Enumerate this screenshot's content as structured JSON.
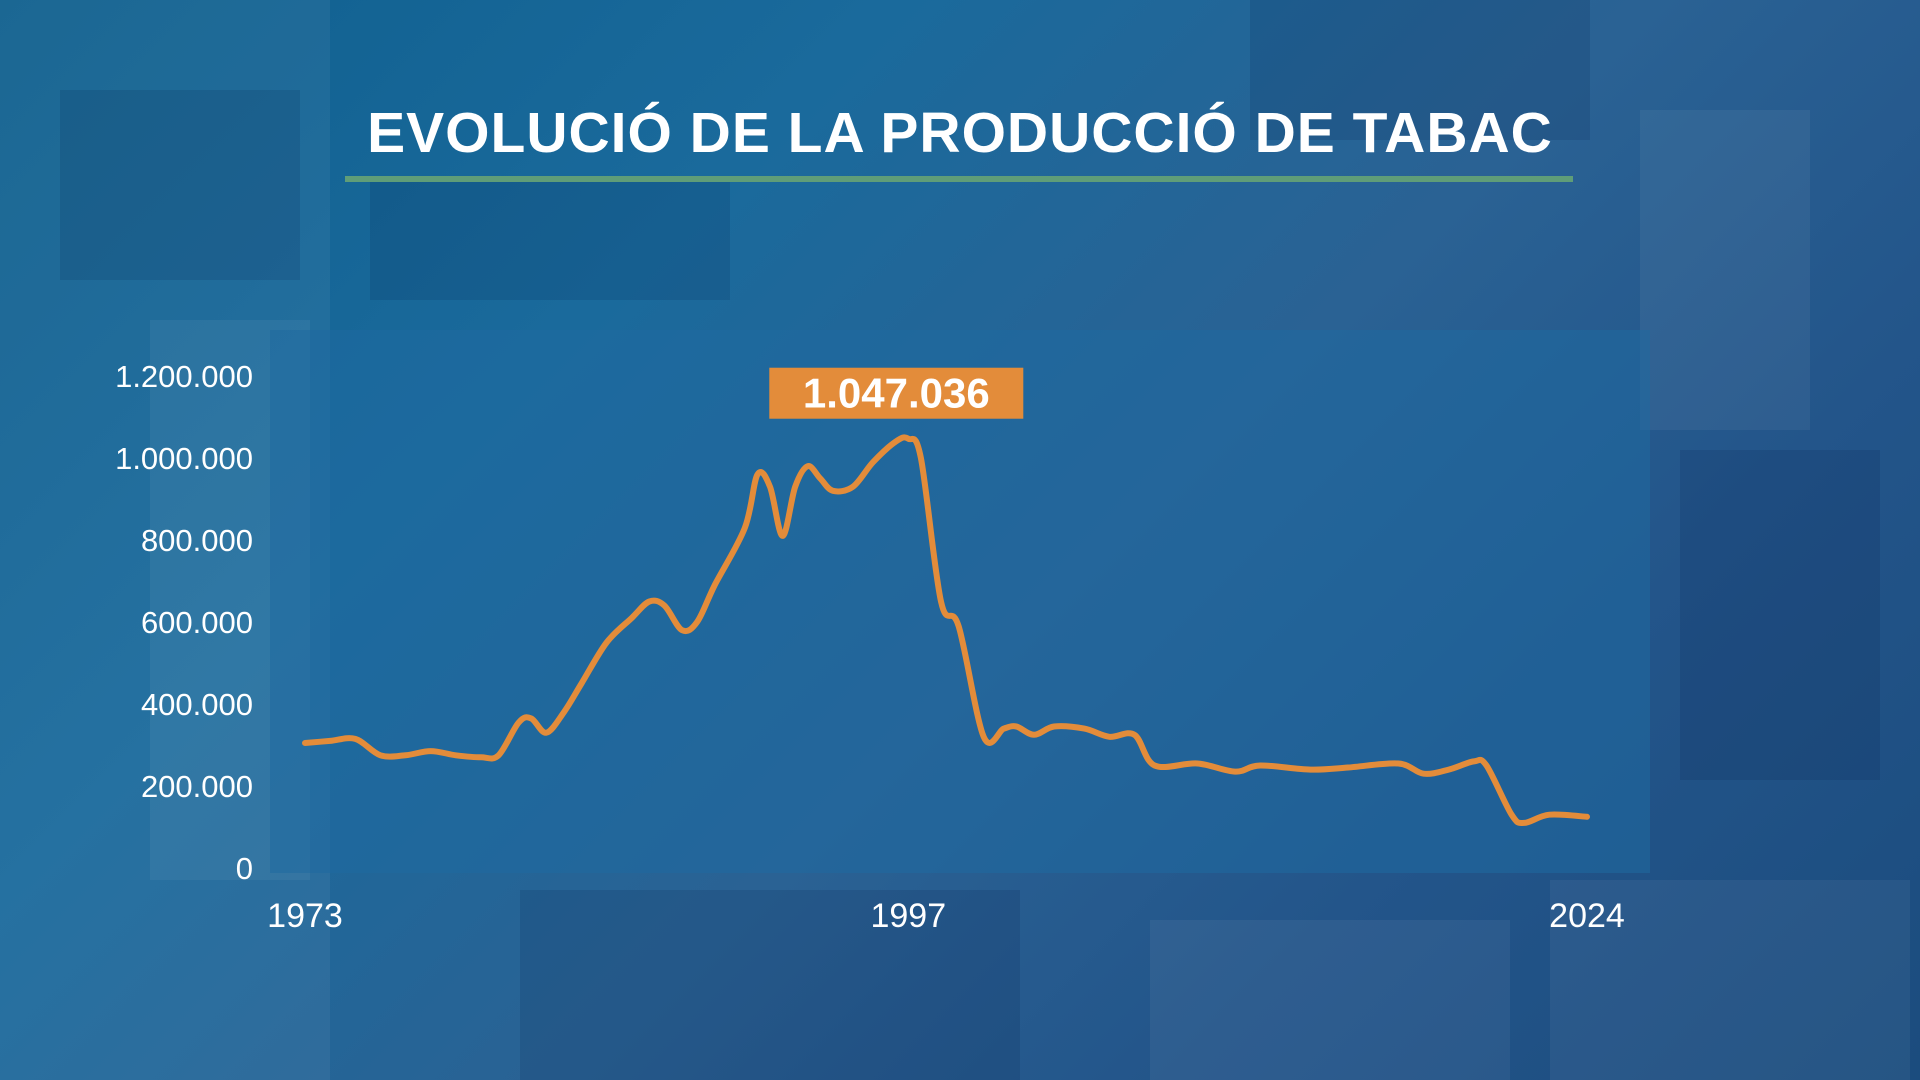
{
  "title": "EVOLUCIÓ DE LA PRODUCCIÓ DE TABAC",
  "colors": {
    "line": "#e38c3a",
    "label_bg": "#e38c3a",
    "title_rule": "#5f9d78",
    "text": "#ffffff",
    "plot_bg": "#1f6aa0"
  },
  "chart_data": {
    "type": "line",
    "title": "EVOLUCIÓ DE LA PRODUCCIÓ DE TABAC",
    "xlabel": "",
    "ylabel": "",
    "ylim": [
      0,
      1200000
    ],
    "xlim": [
      1973,
      2024
    ],
    "grid": false,
    "y_ticks": [
      "0",
      "200.000",
      "400.000",
      "600.000",
      "800.000",
      "1.000.000",
      "1.200.000"
    ],
    "y_tick_values": [
      0,
      200000,
      400000,
      600000,
      800000,
      1000000,
      1200000
    ],
    "x_ticks": [
      "1973",
      "1997",
      "2024"
    ],
    "x_tick_values": [
      1973,
      1997,
      2024
    ],
    "annotation": {
      "text": "1.047.036",
      "x": 1997,
      "y": 1047036
    },
    "series": [
      {
        "values": [
          {
            "x": 1973.0,
            "y": 305000
          },
          {
            "x": 1974.0,
            "y": 310000
          },
          {
            "x": 1975.0,
            "y": 315000
          },
          {
            "x": 1976.0,
            "y": 275000
          },
          {
            "x": 1977.0,
            "y": 275000
          },
          {
            "x": 1978.0,
            "y": 285000
          },
          {
            "x": 1979.0,
            "y": 275000
          },
          {
            "x": 1980.0,
            "y": 270000
          },
          {
            "x": 1980.7,
            "y": 275000
          },
          {
            "x": 1981.5,
            "y": 355000
          },
          {
            "x": 1982.0,
            "y": 365000
          },
          {
            "x": 1982.6,
            "y": 330000
          },
          {
            "x": 1983.3,
            "y": 380000
          },
          {
            "x": 1984.0,
            "y": 450000
          },
          {
            "x": 1985.0,
            "y": 550000
          },
          {
            "x": 1986.0,
            "y": 610000
          },
          {
            "x": 1986.7,
            "y": 650000
          },
          {
            "x": 1987.3,
            "y": 640000
          },
          {
            "x": 1988.0,
            "y": 580000
          },
          {
            "x": 1988.6,
            "y": 600000
          },
          {
            "x": 1989.3,
            "y": 690000
          },
          {
            "x": 1990.5,
            "y": 830000
          },
          {
            "x": 1991.0,
            "y": 960000
          },
          {
            "x": 1991.5,
            "y": 930000
          },
          {
            "x": 1992.0,
            "y": 810000
          },
          {
            "x": 1992.5,
            "y": 930000
          },
          {
            "x": 1993.0,
            "y": 980000
          },
          {
            "x": 1993.5,
            "y": 950000
          },
          {
            "x": 1994.0,
            "y": 920000
          },
          {
            "x": 1994.8,
            "y": 930000
          },
          {
            "x": 1995.6,
            "y": 990000
          },
          {
            "x": 1996.5,
            "y": 1040000
          },
          {
            "x": 1997.0,
            "y": 1047036
          },
          {
            "x": 1997.5,
            "y": 1000000
          },
          {
            "x": 1998.3,
            "y": 650000
          },
          {
            "x": 1999.0,
            "y": 590000
          },
          {
            "x": 2000.0,
            "y": 320000
          },
          {
            "x": 2000.8,
            "y": 340000
          },
          {
            "x": 2001.3,
            "y": 345000
          },
          {
            "x": 2002.0,
            "y": 325000
          },
          {
            "x": 2002.8,
            "y": 345000
          },
          {
            "x": 2004.0,
            "y": 340000
          },
          {
            "x": 2005.0,
            "y": 320000
          },
          {
            "x": 2006.0,
            "y": 325000
          },
          {
            "x": 2006.8,
            "y": 250000
          },
          {
            "x": 2008.5,
            "y": 255000
          },
          {
            "x": 2010.0,
            "y": 235000
          },
          {
            "x": 2011.0,
            "y": 250000
          },
          {
            "x": 2013.0,
            "y": 240000
          },
          {
            "x": 2014.5,
            "y": 245000
          },
          {
            "x": 2016.5,
            "y": 255000
          },
          {
            "x": 2017.5,
            "y": 230000
          },
          {
            "x": 2018.5,
            "y": 240000
          },
          {
            "x": 2019.5,
            "y": 260000
          },
          {
            "x": 2020.0,
            "y": 250000
          },
          {
            "x": 2021.0,
            "y": 130000
          },
          {
            "x": 2021.5,
            "y": 110000
          },
          {
            "x": 2022.5,
            "y": 130000
          },
          {
            "x": 2024.0,
            "y": 125000
          }
        ]
      }
    ]
  }
}
